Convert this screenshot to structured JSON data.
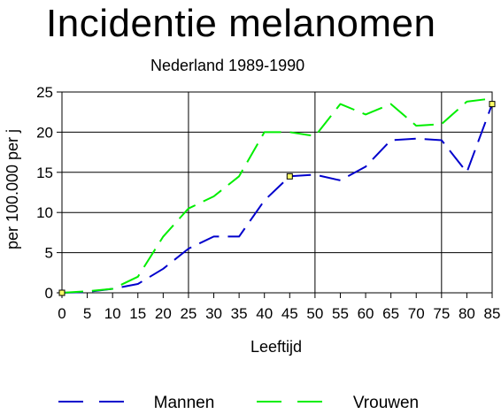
{
  "chart_data": {
    "type": "line",
    "title": "Incidentie melanomen",
    "subtitle": "Nederland 1989-1990",
    "xlabel": "Leeftijd",
    "ylabel": "per 100.000 per j",
    "x": [
      0,
      5,
      10,
      15,
      20,
      25,
      30,
      35,
      40,
      45,
      50,
      55,
      60,
      65,
      70,
      75,
      80,
      85
    ],
    "xlim": [
      0,
      85
    ],
    "ylim": [
      0,
      25
    ],
    "xticks": [
      "0",
      "5",
      "10",
      "15",
      "20",
      "25",
      "30",
      "35",
      "40",
      "45",
      "50",
      "55",
      "60",
      "65",
      "70",
      "75",
      "80",
      "85"
    ],
    "yticks": [
      "0",
      "5",
      "10",
      "15",
      "20",
      "25"
    ],
    "grid": "major lines every 25 on x, every 5 on y",
    "legend": "bottom",
    "series": [
      {
        "name": "Mannen",
        "color": "#0000cc",
        "values": [
          0,
          0.1,
          0.5,
          1.1,
          3,
          5.5,
          7,
          7,
          11.5,
          14.5,
          14.7,
          14,
          15.7,
          19,
          19.2,
          19,
          15,
          23.5
        ]
      },
      {
        "name": "Vrouwen",
        "color": "#00ee00",
        "values": [
          0,
          0.2,
          0.5,
          2,
          7,
          10.5,
          12,
          14.5,
          20,
          20,
          19.5,
          23.5,
          22.2,
          23.5,
          20.8,
          21,
          23.8,
          24.2
        ]
      }
    ]
  }
}
